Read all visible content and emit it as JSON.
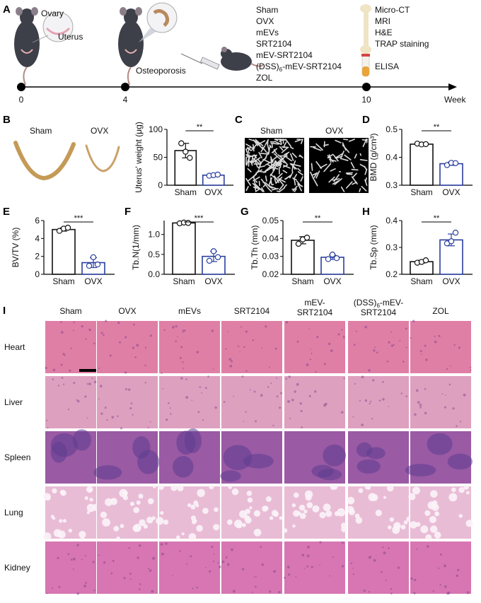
{
  "panel_labels": [
    "A",
    "B",
    "C",
    "D",
    "E",
    "F",
    "G",
    "H",
    "I"
  ],
  "panel_a": {
    "days": [
      "0",
      "4",
      "10"
    ],
    "week_label": "Week",
    "ovary_label": "Ovary",
    "uterus_label": "Uterus",
    "osteoporosis_label": "Osteoporosis",
    "groups": [
      "Sham",
      "OVX",
      "mEVs",
      "SRT2104",
      "mEV-SRT2104",
      "(DSS)6-mEV-SRT2104",
      "ZOL"
    ],
    "analyses": [
      "Micro-CT",
      "MRI",
      "H&E",
      "TRAP staining"
    ],
    "elisa": "ELISA"
  },
  "panel_b": {
    "sham_label": "Sham",
    "ovx_label": "OVX"
  },
  "panel_c": {
    "sham_label": "Sham",
    "ovx_label": "OVX"
  },
  "sig": {
    "two": "**",
    "three": "***"
  },
  "chart_data": [
    {
      "id": "B",
      "type": "bar",
      "categories": [
        "Sham",
        "OVX"
      ],
      "values": [
        62,
        18
      ],
      "points": [
        [
          75,
          60,
          49
        ],
        [
          17,
          18,
          19
        ]
      ],
      "errors": [
        13,
        1.5
      ],
      "ylabel": "Uterus' weight (μg)",
      "ylim": [
        0,
        100
      ],
      "yticks": [
        "0",
        "50",
        "100"
      ],
      "tickvals": [
        0,
        50,
        100
      ],
      "significance": "**"
    },
    {
      "id": "D",
      "type": "bar",
      "categories": [
        "Sham",
        "OVX"
      ],
      "values": [
        0.447,
        0.377
      ],
      "points": [
        [
          0.449,
          0.446,
          0.447
        ],
        [
          0.372,
          0.38,
          0.379
        ]
      ],
      "errors": [
        0.003,
        0.006
      ],
      "ylabel": "BMD (g/cm³)",
      "ylim": [
        0.3,
        0.5
      ],
      "yticks": [
        "0.3",
        "0.4",
        "0.5"
      ],
      "tickvals": [
        0.3,
        0.4,
        0.5
      ],
      "significance": "**"
    },
    {
      "id": "E",
      "type": "bar",
      "categories": [
        "Sham",
        "OVX"
      ],
      "values": [
        5.0,
        1.3
      ],
      "points": [
        [
          4.85,
          5.1,
          5.2
        ],
        [
          0.95,
          1.9,
          1.1
        ]
      ],
      "errors": [
        0.18,
        0.55
      ],
      "ylabel": "BV/TV (%)",
      "ylim": [
        0,
        6
      ],
      "yticks": [
        "0",
        "2",
        "4",
        "6"
      ],
      "tickvals": [
        0,
        2,
        4,
        6
      ],
      "significance": "***"
    },
    {
      "id": "F",
      "type": "bar",
      "categories": [
        "Sham",
        "OVX"
      ],
      "values": [
        1.29,
        0.45
      ],
      "points": [
        [
          1.28,
          1.3,
          1.29
        ],
        [
          0.34,
          0.58,
          0.43
        ]
      ],
      "errors": [
        0.01,
        0.13
      ],
      "ylabel": "Tb.N(1/mm)",
      "ylim": [
        0,
        1.35
      ],
      "yticks": [
        "0.0",
        "0.5",
        "1.0"
      ],
      "tickvals": [
        0,
        0.5,
        1.0
      ],
      "significance": "***"
    },
    {
      "id": "G",
      "type": "bar",
      "categories": [
        "Sham",
        "OVX"
      ],
      "values": [
        0.039,
        0.0295
      ],
      "points": [
        [
          0.037,
          0.0395,
          0.0405
        ],
        [
          0.0285,
          0.031,
          0.029
        ]
      ],
      "errors": [
        0.002,
        0.0012
      ],
      "ylabel": "Tb.Th (mm)",
      "ylim": [
        0.02,
        0.05
      ],
      "yticks": [
        "0.02",
        "0.03",
        "0.04",
        "0.05"
      ],
      "tickvals": [
        0.02,
        0.03,
        0.04,
        0.05
      ],
      "significance": "**"
    },
    {
      "id": "H",
      "type": "bar",
      "categories": [
        "Sham",
        "OVX"
      ],
      "values": [
        0.247,
        0.328
      ],
      "points": [
        [
          0.243,
          0.246,
          0.252
        ],
        [
          0.315,
          0.323,
          0.355
        ]
      ],
      "errors": [
        0.005,
        0.022
      ],
      "ylabel": "Tb.Sp (mm)",
      "ylim": [
        0.2,
        0.4
      ],
      "yticks": [
        "0.2",
        "0.3",
        "0.4"
      ],
      "tickvals": [
        0.2,
        0.3,
        0.4
      ],
      "significance": "**"
    }
  ],
  "panel_i": {
    "columns": [
      "Sham",
      "OVX",
      "mEVs",
      "SRT2104",
      "mEV-\nSRT2104",
      "(DSS)6-mEV-\nSRT2104",
      "ZOL"
    ],
    "rows": [
      "Heart",
      "Liver",
      "Spleen",
      "Lung",
      "Kidney"
    ]
  },
  "colors": {
    "sham": "#111111",
    "ovx": "#2b3f9e",
    "heart": "#e07fa6",
    "liver": "#dea0bf",
    "spleen": "#9a5aa4",
    "lung": "#e9bcd6",
    "kidney": "#d776b2"
  }
}
